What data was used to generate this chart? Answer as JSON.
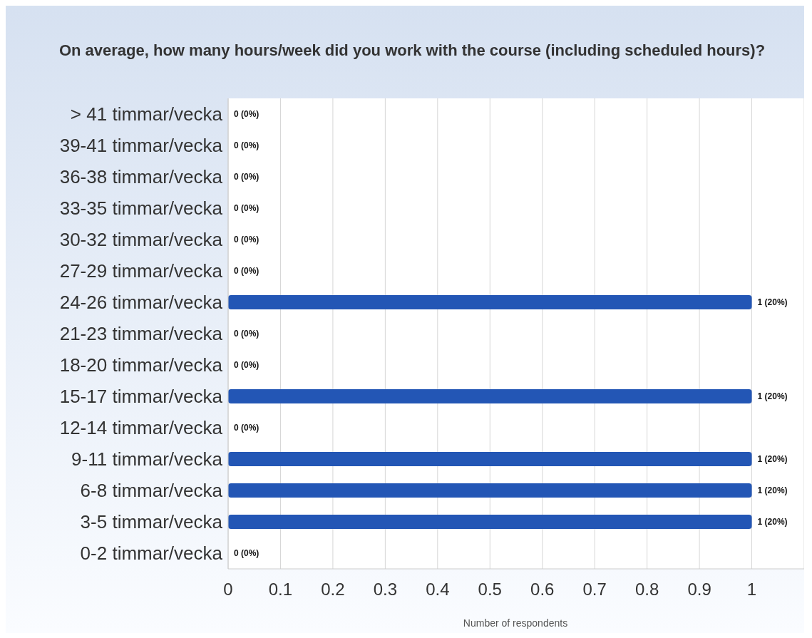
{
  "chart_data": {
    "type": "bar",
    "orientation": "horizontal",
    "title": "On average, how many hours/week did you work with the course (including scheduled hours)?",
    "xlabel": "Number of respondents",
    "categories": [
      "> 41 timmar/vecka",
      "39-41 timmar/vecka",
      "36-38 timmar/vecka",
      "33-35 timmar/vecka",
      "30-32 timmar/vecka",
      "27-29 timmar/vecka",
      "24-26 timmar/vecka",
      "21-23 timmar/vecka",
      "18-20 timmar/vecka",
      "15-17 timmar/vecka",
      "12-14 timmar/vecka",
      "9-11 timmar/vecka",
      "6-8 timmar/vecka",
      "3-5 timmar/vecka",
      "0-2 timmar/vecka"
    ],
    "values": [
      0,
      0,
      0,
      0,
      0,
      0,
      1,
      0,
      0,
      1,
      0,
      1,
      1,
      1,
      0
    ],
    "value_labels": [
      "0 (0%)",
      "0 (0%)",
      "0 (0%)",
      "0 (0%)",
      "0 (0%)",
      "0 (0%)",
      "1 (20%)",
      "0 (0%)",
      "0 (0%)",
      "1 (20%)",
      "0 (0%)",
      "1 (20%)",
      "1 (20%)",
      "1 (20%)",
      "0 (0%)"
    ],
    "color": "#2356b5",
    "xlim": [
      0,
      1.1
    ],
    "xticks": [
      0,
      0.1,
      0.2,
      0.3,
      0.4,
      0.5,
      0.6,
      0.7,
      0.8,
      0.9,
      1
    ],
    "grid": "x"
  }
}
